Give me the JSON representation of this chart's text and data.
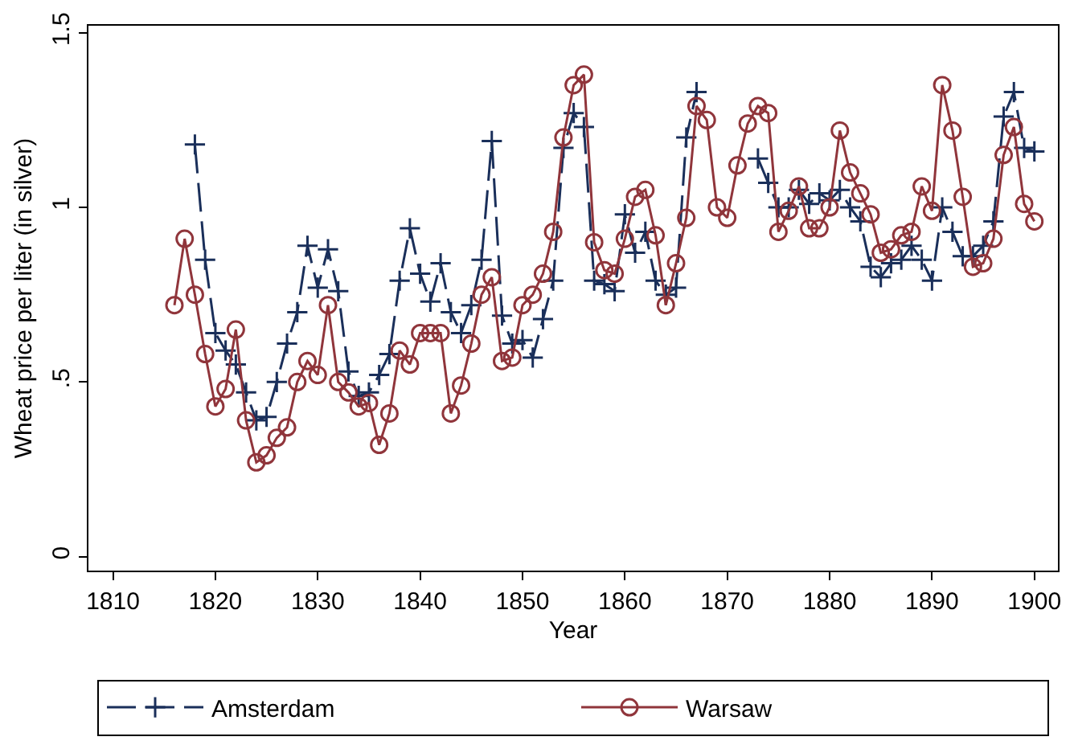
{
  "chart_data": {
    "type": "line",
    "xlabel": "Year",
    "ylabel": "Wheat price per liter (in silver)",
    "xlim": [
      1807.6,
      1902.3
    ],
    "ylim": [
      -0.04,
      1.52
    ],
    "xticks": [
      1810,
      1820,
      1830,
      1840,
      1850,
      1860,
      1870,
      1880,
      1890,
      1900
    ],
    "yticks": [
      0,
      {
        "value": 0.5,
        "label": ".5"
      },
      1,
      1.5
    ],
    "grid": false,
    "legend": "bottom",
    "x": [
      1816,
      1817,
      1818,
      1819,
      1820,
      1821,
      1822,
      1823,
      1824,
      1825,
      1826,
      1827,
      1828,
      1829,
      1830,
      1831,
      1832,
      1833,
      1834,
      1835,
      1836,
      1837,
      1838,
      1839,
      1840,
      1841,
      1842,
      1843,
      1844,
      1845,
      1846,
      1847,
      1848,
      1849,
      1850,
      1851,
      1852,
      1853,
      1854,
      1855,
      1856,
      1857,
      1858,
      1859,
      1860,
      1861,
      1862,
      1863,
      1864,
      1865,
      1866,
      1867,
      1868,
      1869,
      1870,
      1871,
      1872,
      1873,
      1874,
      1875,
      1876,
      1877,
      1878,
      1879,
      1880,
      1881,
      1882,
      1883,
      1884,
      1885,
      1886,
      1887,
      1888,
      1889,
      1890,
      1891,
      1892,
      1893,
      1894,
      1895,
      1896,
      1897,
      1898,
      1899,
      1900
    ],
    "series": [
      {
        "name": "Amsterdam",
        "color": "#1a2f5a",
        "marker": "cross",
        "line_style": "dashed",
        "values": [
          null,
          null,
          1.18,
          0.85,
          0.64,
          0.59,
          0.55,
          0.47,
          0.39,
          0.4,
          0.5,
          0.61,
          0.7,
          0.89,
          0.77,
          0.88,
          0.76,
          0.53,
          0.46,
          0.47,
          0.52,
          0.58,
          0.79,
          0.94,
          0.81,
          0.73,
          0.84,
          0.7,
          0.64,
          0.72,
          0.85,
          1.19,
          0.69,
          0.61,
          0.62,
          0.57,
          0.68,
          0.79,
          1.17,
          1.27,
          1.23,
          0.79,
          0.78,
          0.76,
          0.98,
          0.87,
          0.93,
          0.79,
          0.75,
          0.77,
          1.2,
          1.33,
          null,
          null,
          null,
          null,
          null,
          1.14,
          1.07,
          1.0,
          1.0,
          1.05,
          1.01,
          1.04,
          1.02,
          1.05,
          1.0,
          0.96,
          0.83,
          0.8,
          0.84,
          0.85,
          0.89,
          0.85,
          0.79,
          1.0,
          0.93,
          0.86,
          0.86,
          0.89,
          0.96,
          1.26,
          1.33,
          1.17,
          1.16
        ]
      },
      {
        "name": "Warsaw",
        "color": "#90353b",
        "marker": "circle",
        "line_style": "solid",
        "values": [
          0.72,
          0.91,
          0.75,
          0.58,
          0.43,
          0.48,
          0.65,
          0.39,
          0.27,
          0.29,
          0.34,
          0.37,
          0.5,
          0.56,
          0.52,
          0.72,
          0.5,
          0.47,
          0.43,
          0.44,
          0.32,
          0.41,
          0.59,
          0.55,
          0.64,
          0.64,
          0.64,
          0.41,
          0.49,
          0.61,
          0.75,
          0.8,
          0.56,
          0.57,
          0.72,
          0.75,
          0.81,
          0.93,
          1.2,
          1.35,
          1.38,
          0.9,
          0.82,
          0.81,
          0.91,
          1.03,
          1.05,
          0.92,
          0.72,
          0.84,
          0.97,
          1.29,
          1.25,
          1.0,
          0.97,
          1.12,
          1.24,
          1.29,
          1.27,
          0.93,
          0.99,
          1.06,
          0.94,
          0.94,
          1.0,
          1.22,
          1.1,
          1.04,
          0.98,
          0.87,
          0.88,
          0.92,
          0.93,
          1.06,
          0.99,
          1.35,
          1.22,
          1.03,
          0.83,
          0.84,
          0.91,
          1.15,
          1.23,
          1.01,
          0.96
        ]
      }
    ]
  }
}
